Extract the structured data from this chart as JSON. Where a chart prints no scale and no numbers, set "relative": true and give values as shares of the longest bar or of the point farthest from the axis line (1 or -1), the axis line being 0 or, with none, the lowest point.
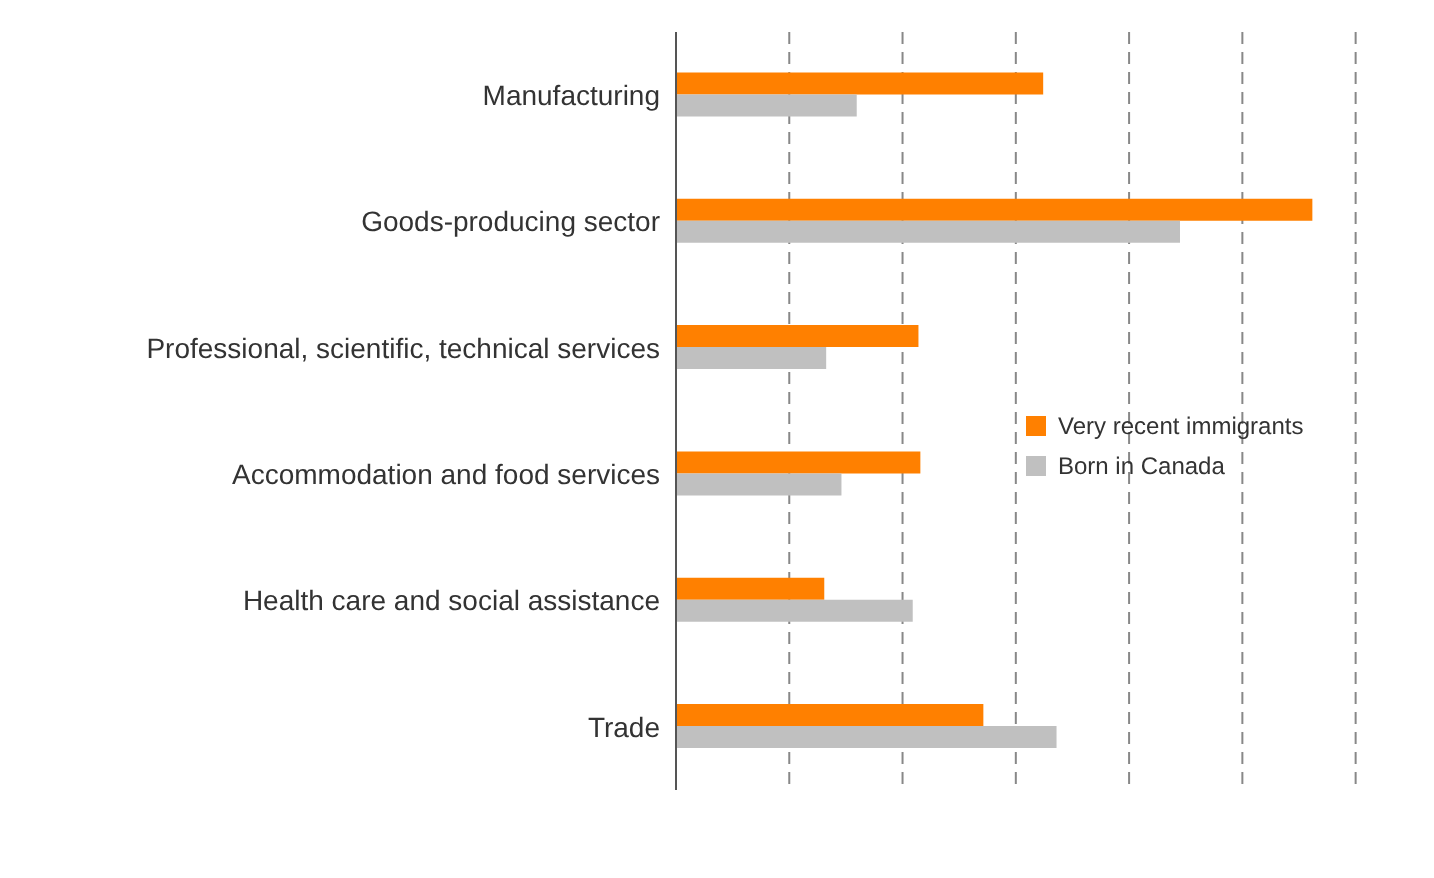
{
  "chart_data": {
    "type": "bar",
    "orientation": "horizontal",
    "relative": true,
    "grid": "x",
    "legend": "right",
    "categories": [
      "Manufacturing",
      "Goods-producing sector",
      "Professional, scientific, technical services",
      "Accommodation and food services",
      "Health care and social assistance",
      "Trade"
    ],
    "series": [
      {
        "name": "Very recent immigrants",
        "color": "#ff8000",
        "values": [
          0.577,
          1,
          0.381,
          0.384,
          0.233,
          0.483
        ]
      },
      {
        "name": "Born in Canada",
        "color": "#c0c0c0",
        "values": [
          0.284,
          0.792,
          0.236,
          0.26,
          0.372,
          0.598
        ]
      }
    ]
  }
}
